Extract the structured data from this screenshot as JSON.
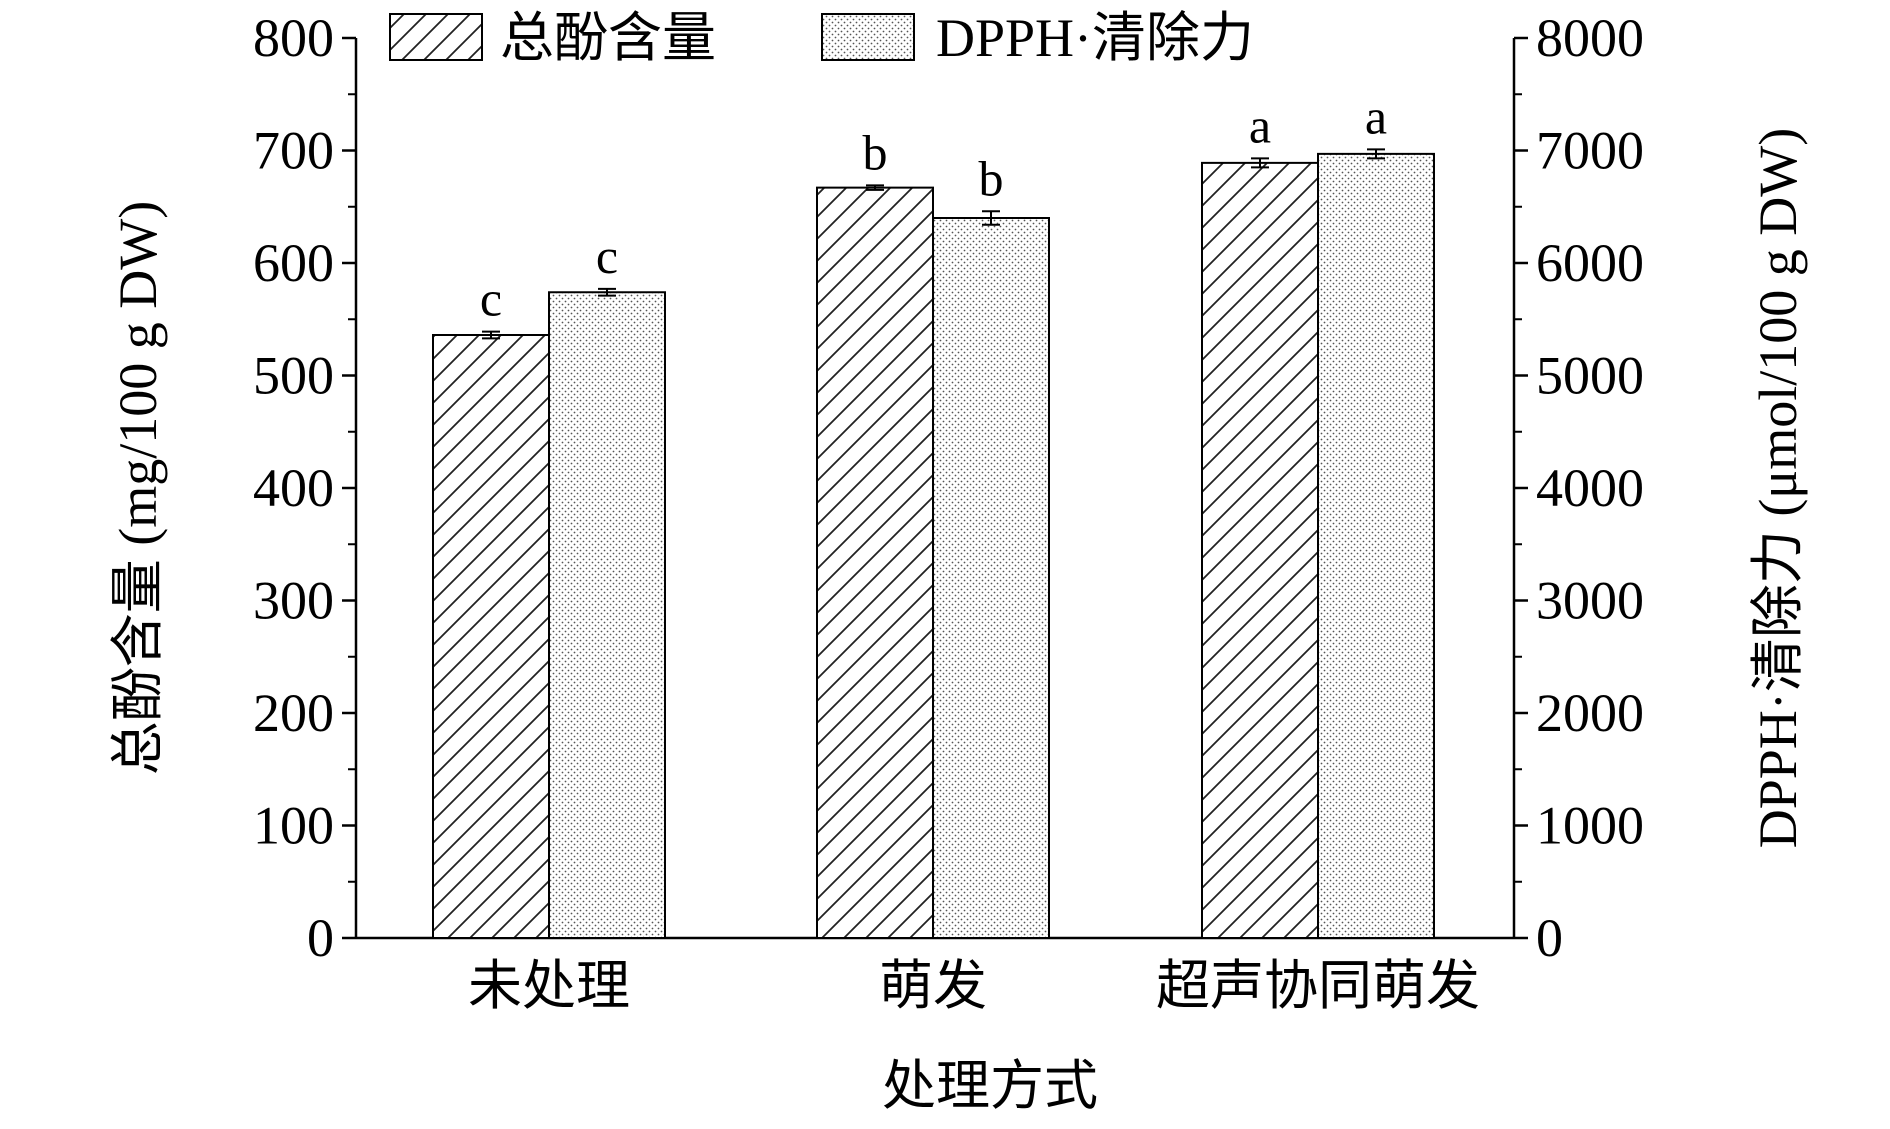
{
  "chart_data": {
    "type": "bar",
    "title": "",
    "xlabel": "处理方式",
    "ylabel_left": "总酚含量 (mg/100 g DW)",
    "ylabel_right": "DPPH·清除力 (μmol/100 g DW)",
    "categories": [
      "未处理",
      "萌发",
      "超声协同萌发"
    ],
    "ylim_left": [
      0,
      800
    ],
    "ylim_right": [
      0,
      8000
    ],
    "yticks_left": [
      "0",
      "100",
      "200",
      "300",
      "400",
      "500",
      "600",
      "700",
      "800"
    ],
    "yticks_right": [
      "0",
      "1000",
      "2000",
      "3000",
      "4000",
      "5000",
      "6000",
      "7000",
      "8000"
    ],
    "legend_position": "top",
    "grid": false,
    "series": [
      {
        "name": "总酚含量",
        "axis": "left",
        "pattern": "hatch",
        "values": [
          536,
          667,
          689
        ],
        "errors": [
          3,
          2,
          4
        ],
        "significance": [
          "c",
          "b",
          "a"
        ]
      },
      {
        "name": "DPPH·清除力",
        "axis": "right",
        "pattern": "dots",
        "values": [
          5740,
          6400,
          6970
        ],
        "errors": [
          30,
          60,
          40
        ],
        "significance": [
          "c",
          "b",
          "a"
        ]
      }
    ]
  }
}
